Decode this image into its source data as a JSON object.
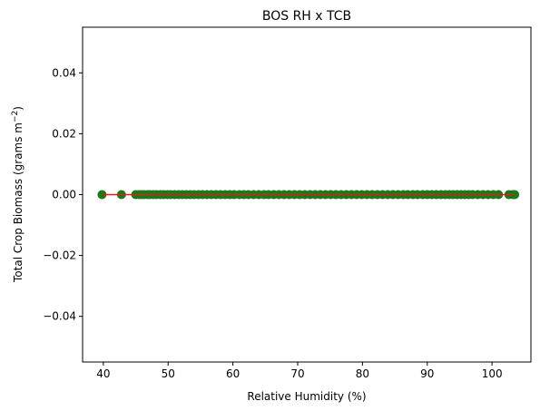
{
  "chart_data": {
    "type": "scatter",
    "title": "BOS RH x TCB",
    "xlabel": "Relative Humidity (%)",
    "ylabel": "Total Crop Biomass (grams m",
    "ylabel_superscript": "−2",
    "ylabel_close": ")",
    "xlim": [
      36.8,
      106.0
    ],
    "ylim": [
      -0.055,
      0.055
    ],
    "x_ticks": [
      40,
      50,
      60,
      70,
      80,
      90,
      100
    ],
    "x_tick_labels": [
      "40",
      "50",
      "60",
      "70",
      "80",
      "90",
      "100"
    ],
    "y_ticks": [
      -0.04,
      -0.02,
      0.0,
      0.02,
      0.04
    ],
    "y_tick_labels": [
      "−0.04",
      "−0.02",
      "0.00",
      "0.02",
      "0.04"
    ],
    "grid": false,
    "scatter_color": "#1a7a1a",
    "fit_line_color": "#e31a1c",
    "series": [
      {
        "kind": "scatter",
        "x": [
          39.8,
          42.8,
          45.0,
          45.5,
          45.9,
          46.3,
          46.8,
          47.2,
          47.7,
          48.2,
          48.8,
          49.3,
          49.9,
          50.4,
          51.0,
          51.6,
          52.2,
          52.8,
          53.4,
          54.0,
          54.7,
          55.3,
          56.0,
          56.7,
          57.4,
          58.1,
          58.8,
          59.5,
          60.2,
          61.0,
          61.7,
          62.4,
          63.2,
          64.0,
          64.8,
          65.5,
          66.3,
          67.1,
          67.9,
          68.7,
          69.5,
          70.3,
          71.1,
          71.9,
          72.7,
          73.5,
          74.3,
          75.1,
          75.9,
          76.7,
          77.5,
          78.3,
          79.1,
          79.9,
          80.7,
          81.5,
          82.3,
          83.1,
          83.9,
          84.7,
          85.5,
          86.3,
          87.0,
          87.8,
          88.5,
          89.3,
          90.0,
          90.7,
          91.4,
          92.1,
          92.8,
          93.4,
          94.0,
          94.6,
          95.2,
          95.8,
          96.4,
          97.0,
          97.8,
          98.6,
          99.4,
          100.2,
          101.0,
          102.6,
          103.2,
          103.5
        ],
        "y_value": 0.0
      },
      {
        "kind": "line",
        "x": [
          39.8,
          103.5
        ],
        "y": [
          0.0,
          0.0
        ]
      }
    ]
  }
}
